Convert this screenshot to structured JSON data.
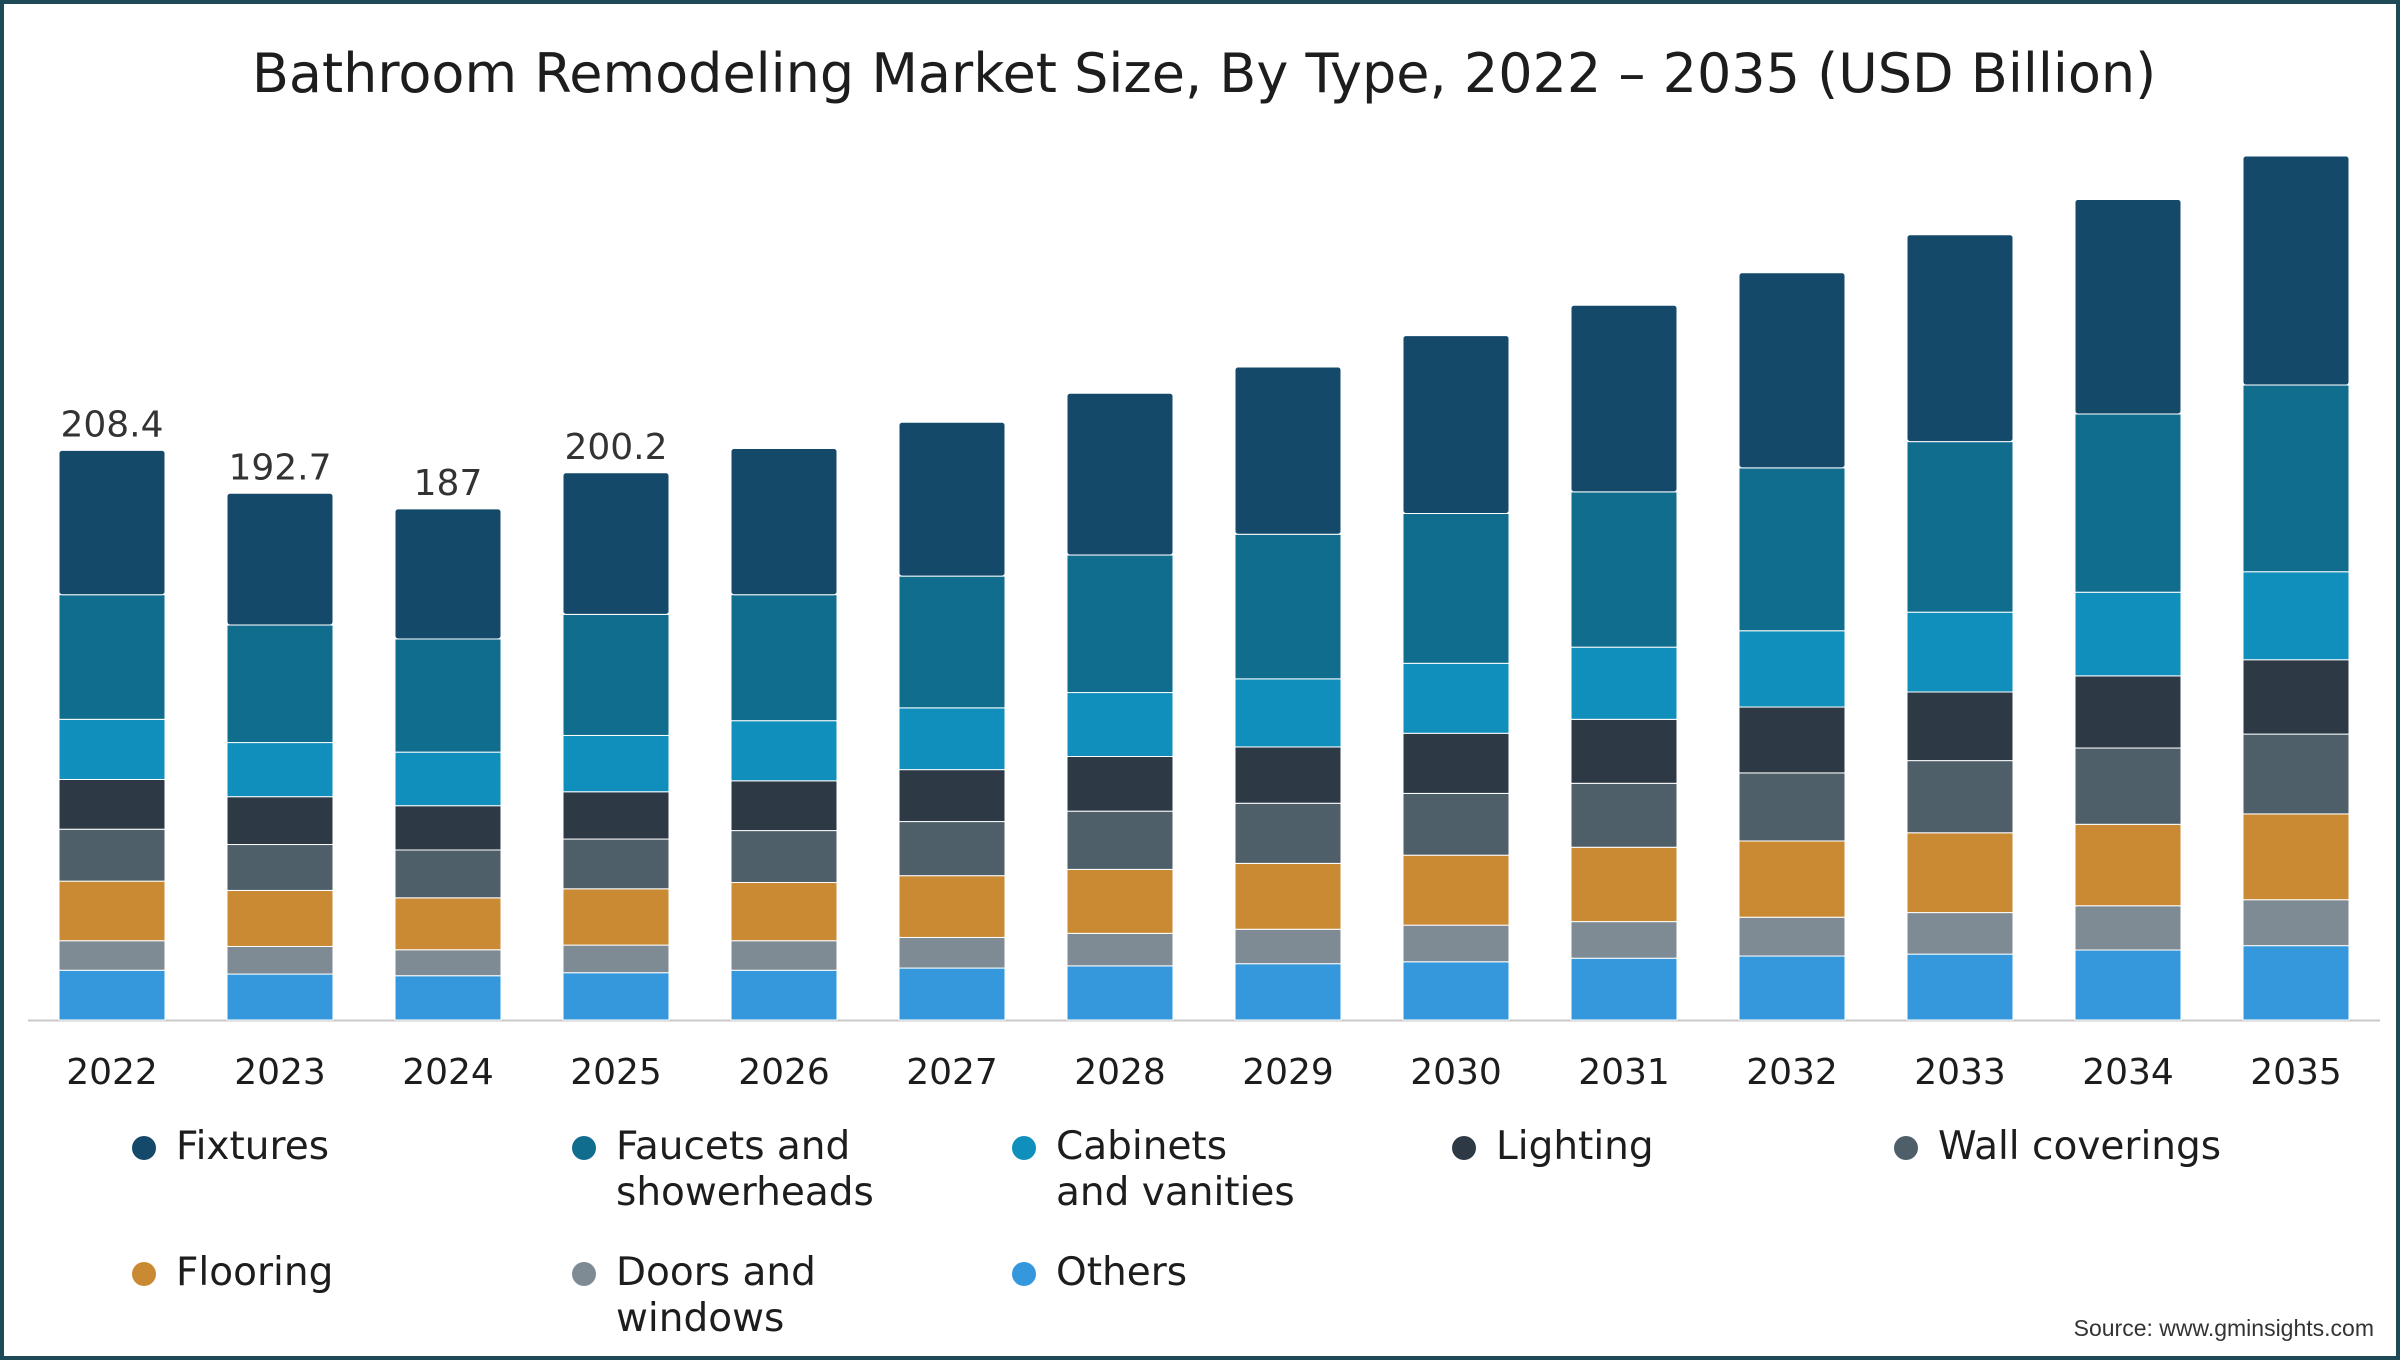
{
  "chart_data": {
    "type": "bar",
    "stacked": true,
    "title": "Bathroom Remodeling Market Size, By Type, 2022 – 2035 (USD Billion)",
    "xlabel": "",
    "ylabel": "",
    "ylim": [
      0,
      330
    ],
    "grid": false,
    "legend_position": "bottom",
    "categories": [
      "2022",
      "2023",
      "2024",
      "2025",
      "2026",
      "2027",
      "2028",
      "2029",
      "2030",
      "2031",
      "2032",
      "2033",
      "2034",
      "2035"
    ],
    "total_labels": [
      "208.4",
      "192.7",
      "187",
      "200.2",
      "",
      "",
      "",
      "",
      "",
      "",
      "",
      "",
      "",
      ""
    ],
    "series": [
      {
        "name": "Others",
        "color": "#3598dc",
        "values": [
          18.2,
          16.8,
          16.2,
          17.3,
          18.2,
          19.0,
          19.8,
          20.6,
          21.3,
          22.6,
          23.4,
          24.1,
          25.6,
          27.2
        ]
      },
      {
        "name": "Doors and windows",
        "color": "#7f8b94",
        "values": [
          10.8,
          10.1,
          9.5,
          10.1,
          10.8,
          11.2,
          11.9,
          12.6,
          13.4,
          13.4,
          14.2,
          15.2,
          16.2,
          16.8
        ]
      },
      {
        "name": "Flooring",
        "color": "#ca8a34",
        "values": [
          21.8,
          20.5,
          19.0,
          20.6,
          21.3,
          22.6,
          23.4,
          24.1,
          25.6,
          27.2,
          27.9,
          29.2,
          29.8,
          31.4
        ]
      },
      {
        "name": "Wall coverings",
        "color": "#4f5f69",
        "values": [
          19.0,
          16.8,
          17.5,
          18.2,
          19.0,
          19.8,
          21.3,
          22.0,
          22.6,
          23.4,
          24.9,
          26.4,
          27.9,
          29.2
        ]
      },
      {
        "name": "Lighting",
        "color": "#2d3a45",
        "values": [
          18.2,
          17.5,
          16.2,
          17.3,
          18.2,
          19.0,
          20.0,
          20.6,
          22.0,
          23.4,
          24.1,
          25.1,
          26.4,
          27.2
        ]
      },
      {
        "name": "Cabinets and vanities",
        "color": "#108fbd",
        "values": [
          22.0,
          19.8,
          19.6,
          20.6,
          22.0,
          22.6,
          23.4,
          24.9,
          25.6,
          26.4,
          27.9,
          29.2,
          30.6,
          32.2
        ]
      },
      {
        "name": "Faucets and showerheads",
        "color": "#106d8d",
        "values": [
          45.6,
          43.0,
          41.4,
          44.3,
          46.1,
          48.2,
          50.3,
          52.9,
          54.8,
          56.8,
          59.6,
          62.4,
          65.2,
          68.3
        ]
      },
      {
        "name": "Fixtures",
        "color": "#14496a",
        "values": [
          52.8,
          48.2,
          47.6,
          51.8,
          53.5,
          56.3,
          59.2,
          61.2,
          65.1,
          68.3,
          71.4,
          75.7,
          78.5,
          83.8
        ]
      }
    ]
  },
  "legend": [
    {
      "label": "Fixtures",
      "color": "#14496a"
    },
    {
      "label": "Faucets and showerheads",
      "color": "#106d8d"
    },
    {
      "label": "Cabinets and vanities",
      "color": "#108fbd"
    },
    {
      "label": "Lighting",
      "color": "#2d3a45"
    },
    {
      "label": "Wall coverings",
      "color": "#4f5f69"
    },
    {
      "label": "Flooring",
      "color": "#ca8a34"
    },
    {
      "label": "Doors and windows",
      "color": "#7f8b94"
    },
    {
      "label": "Others",
      "color": "#3598dc"
    }
  ],
  "source": "Source: www.gminsights.com"
}
